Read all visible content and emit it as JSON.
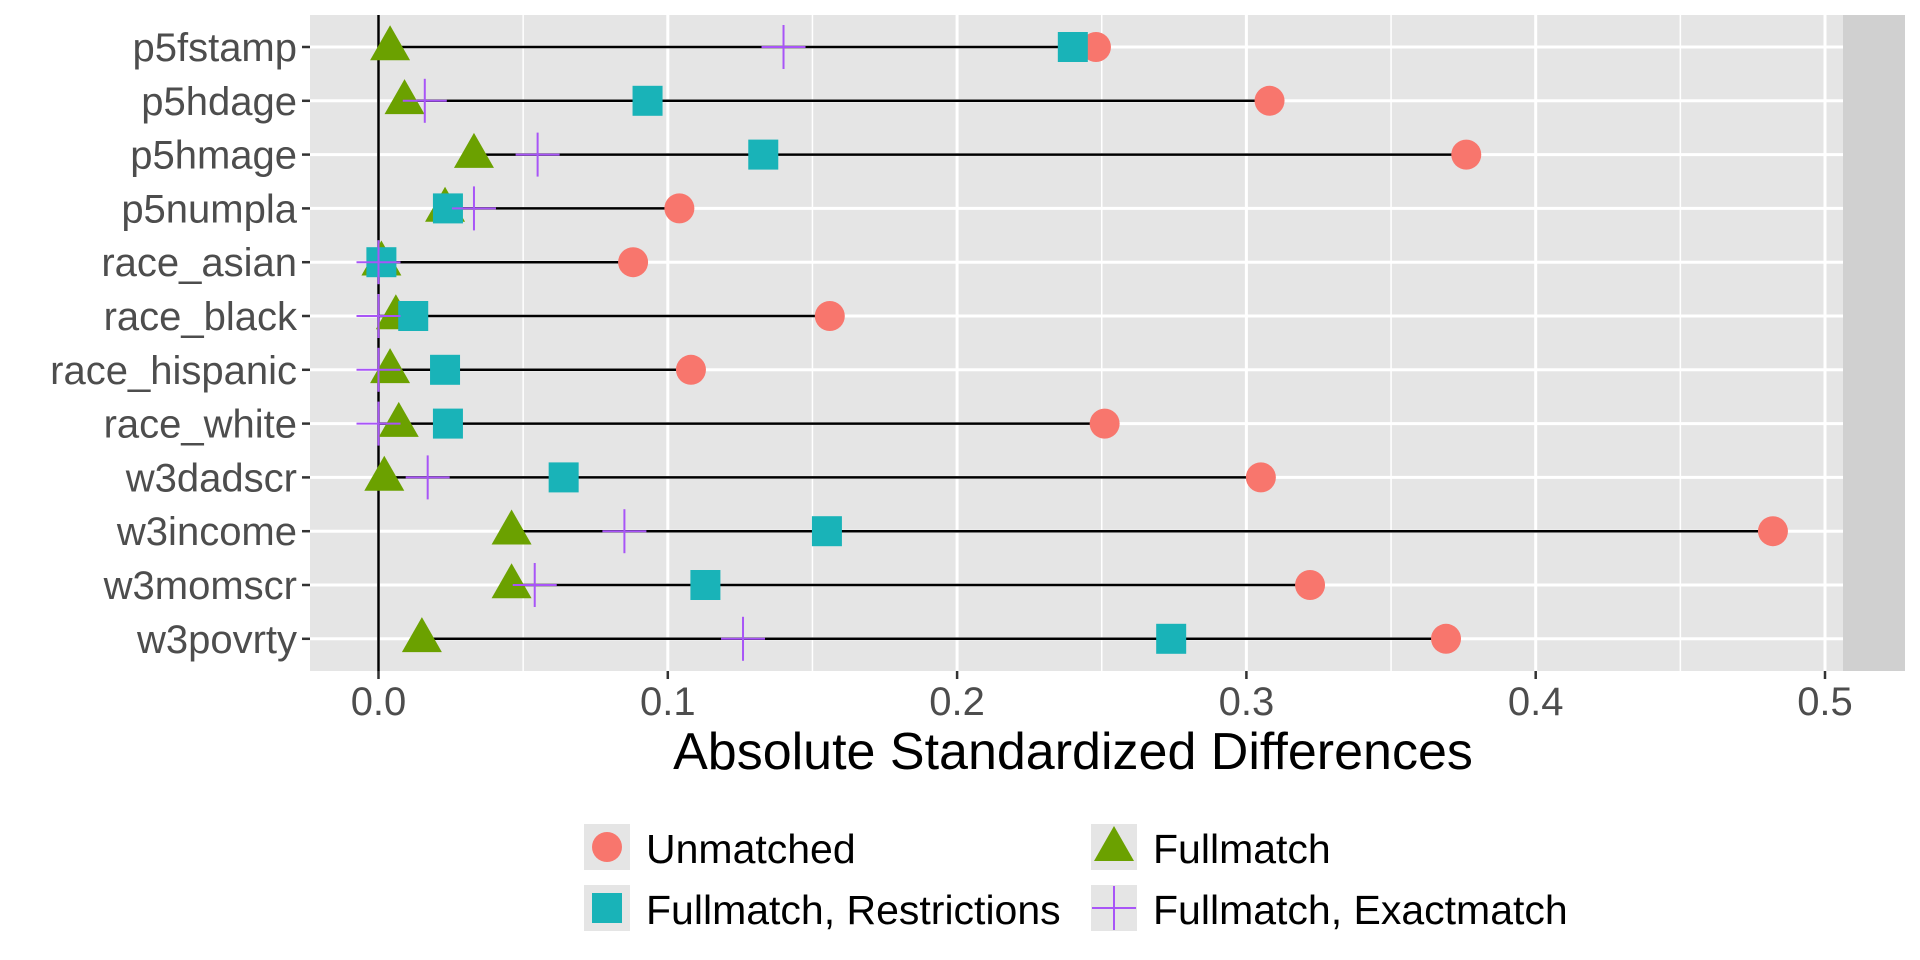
{
  "chart_data": {
    "type": "scatter",
    "subtype": "dot-plot with range segments (love plot)",
    "title": "",
    "xlabel": "Absolute Standardized Differences",
    "ylabel": "",
    "xlim": [
      -0.025,
      0.52
    ],
    "x_ticks": [
      0.0,
      0.1,
      0.2,
      0.3,
      0.4,
      0.5
    ],
    "x_tick_labels": [
      "0.0",
      "0.1",
      "0.2",
      "0.3",
      "0.4",
      "0.5"
    ],
    "grid": true,
    "reference_line_x": 0,
    "legend_position": "bottom",
    "categories": [
      "p5fstamp",
      "p5hdage",
      "p5hmage",
      "p5numpla",
      "race_asian",
      "race_black",
      "race_hispanic",
      "race_white",
      "w3dadscr",
      "w3income",
      "w3momscr",
      "w3povrty"
    ],
    "series": [
      {
        "name": "Unmatched",
        "shape": "circle",
        "color": "#F8766D",
        "values": [
          0.248,
          0.308,
          0.376,
          0.104,
          0.088,
          0.156,
          0.108,
          0.251,
          0.305,
          0.482,
          0.322,
          0.369
        ]
      },
      {
        "name": "Fullmatch",
        "shape": "triangle",
        "color": "#6BA100",
        "values": [
          0.004,
          0.009,
          0.033,
          0.023,
          0.001,
          0.006,
          0.004,
          0.007,
          0.002,
          0.046,
          0.046,
          0.015
        ]
      },
      {
        "name": "Fullmatch, Restrictions",
        "shape": "square",
        "color": "#19B3B8",
        "values": [
          0.24,
          0.093,
          0.133,
          0.024,
          0.001,
          0.012,
          0.023,
          0.024,
          0.064,
          0.155,
          0.113,
          0.274
        ]
      },
      {
        "name": "Fullmatch, Exactmatch",
        "shape": "cross",
        "color": "#A855F7",
        "values": [
          0.14,
          0.016,
          0.055,
          0.033,
          0.0,
          0.0,
          0.0,
          0.0,
          0.017,
          0.085,
          0.054,
          0.126
        ]
      }
    ],
    "legend": [
      {
        "label": "Unmatched",
        "shape": "circle",
        "color": "#F8766D"
      },
      {
        "label": "Fullmatch",
        "shape": "triangle",
        "color": "#6BA100"
      },
      {
        "label": "Fullmatch, Restrictions",
        "shape": "square",
        "color": "#19B3B8"
      },
      {
        "label": "Fullmatch, Exactmatch",
        "shape": "cross",
        "color": "#A855F7"
      }
    ]
  },
  "colors": {
    "panel_background": "#E5E5E5",
    "strip_background": "#D0D0D0",
    "grid": "#FFFFFF",
    "segment": "#000000",
    "axis_text": "#4D4D4D"
  }
}
